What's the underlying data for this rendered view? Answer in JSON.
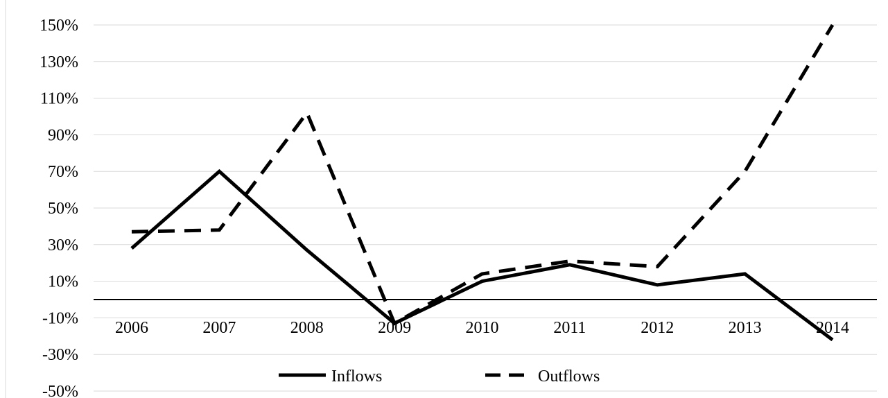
{
  "chart_data": {
    "type": "line",
    "categories": [
      "2006",
      "2007",
      "2008",
      "2009",
      "2010",
      "2011",
      "2012",
      "2013",
      "2014"
    ],
    "series": [
      {
        "name": "Inflows",
        "values": [
          28,
          70,
          27,
          -13,
          10,
          19,
          8,
          14,
          -22
        ],
        "color": "#000000",
        "dash": "solid"
      },
      {
        "name": "Outflows",
        "values": [
          37,
          38,
          102,
          -13,
          14,
          21,
          18,
          70,
          150
        ],
        "color": "#000000",
        "dash": "dashed"
      }
    ],
    "y_ticks": [
      150,
      130,
      110,
      90,
      70,
      50,
      30,
      10,
      -10,
      -30,
      -50
    ],
    "y_tick_labels": [
      "150%",
      "130%",
      "110%",
      "90%",
      "70%",
      "50%",
      "30%",
      "10%",
      "-10%",
      "-30%",
      "-50%"
    ],
    "ylim": [
      -50,
      150
    ],
    "title": "",
    "xlabel": "",
    "ylabel": "",
    "grid": true,
    "legend_position": "bottom"
  }
}
